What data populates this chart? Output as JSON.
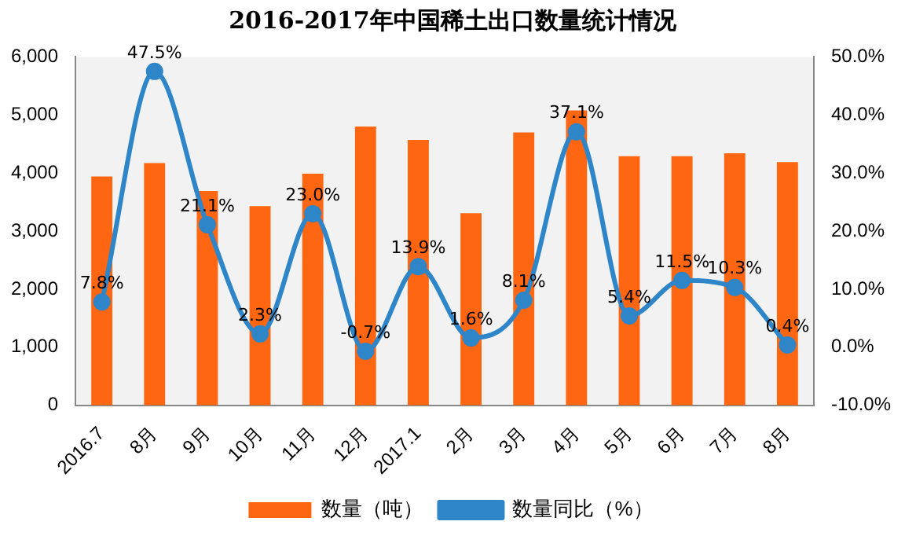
{
  "chart_data": {
    "type": "bar",
    "title": "2016-2017年中国稀土出口数量统计情况",
    "categories": [
      "2016.7",
      "8月",
      "9月",
      "10月",
      "11月",
      "12月",
      "2017.1",
      "2月",
      "3月",
      "4月",
      "5月",
      "6月",
      "7月",
      "8月"
    ],
    "series": [
      {
        "name": "数量（吨）",
        "color": "#ff6611",
        "values": [
          3940,
          4170,
          3690,
          3430,
          3990,
          4800,
          4570,
          3310,
          4700,
          5080,
          4290,
          4290,
          4340,
          4190
        ]
      },
      {
        "name": "数量同比（%）",
        "type": "line",
        "axis": "y2",
        "color": "#2e86c8",
        "marker": "circle",
        "values": [
          7.8,
          47.5,
          21.1,
          2.3,
          23.0,
          -0.7,
          13.9,
          1.6,
          8.1,
          37.1,
          5.4,
          11.5,
          10.3,
          0.4
        ],
        "value_labels": [
          "7.8%",
          "47.5%",
          "21.1%",
          "2.3%",
          "23.0%",
          "-0.7%",
          "13.9%",
          "1.6%",
          "8.1%",
          "37.1%",
          "5.4%",
          "11.5%",
          "10.3%",
          "0.4%"
        ]
      }
    ],
    "ylim": [
      0,
      6000
    ],
    "yticks": [
      0,
      {
        "value": 1000,
        "label": "1,000"
      },
      {
        "value": 2000,
        "label": "2,000"
      },
      {
        "value": 3000,
        "label": "3,000"
      },
      {
        "value": 4000,
        "label": "4,000"
      },
      {
        "value": 5000,
        "label": "5,000"
      },
      {
        "value": 6000,
        "label": "6,000"
      }
    ],
    "y2lim": [
      -10,
      50
    ],
    "y2ticks": [
      {
        "value": -10,
        "label": "-10.0%"
      },
      {
        "value": 0,
        "label": "0.0%"
      },
      {
        "value": 10,
        "label": "10.0%"
      },
      {
        "value": 20,
        "label": "20.0%"
      },
      {
        "value": 30,
        "label": "30.0%"
      },
      {
        "value": 40,
        "label": "40.0%"
      },
      {
        "value": 50,
        "label": "50.0%"
      }
    ],
    "legend": "bottom",
    "grid": false
  }
}
